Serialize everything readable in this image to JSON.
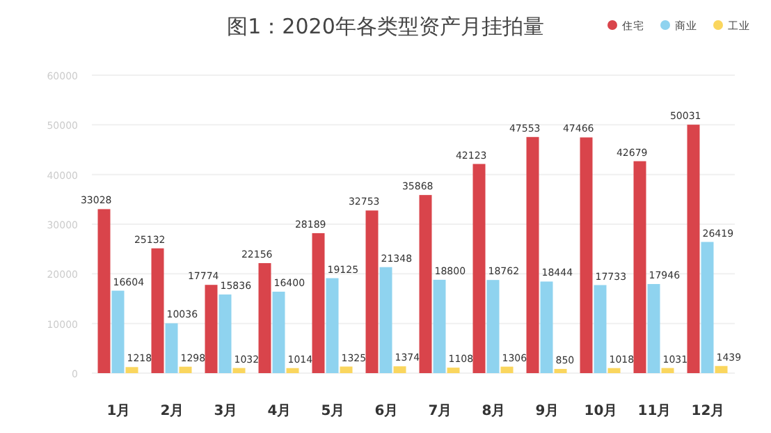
{
  "chart_data": {
    "type": "bar",
    "title": "图1：2020年各类型资产月挂拍量",
    "categories": [
      "1月",
      "2月",
      "3月",
      "4月",
      "5月",
      "6月",
      "7月",
      "8月",
      "9月",
      "10月",
      "11月",
      "12月"
    ],
    "series": [
      {
        "name": "住宅",
        "color": "#d9444b",
        "values": [
          33028,
          25132,
          17774,
          22156,
          28189,
          32753,
          35868,
          42123,
          47553,
          47466,
          42679,
          50031
        ]
      },
      {
        "name": "商业",
        "color": "#8fd3ef",
        "values": [
          16604,
          10036,
          15836,
          16400,
          19125,
          21348,
          18800,
          18762,
          18444,
          17733,
          17946,
          26419
        ]
      },
      {
        "name": "工业",
        "color": "#fad65e",
        "values": [
          1218,
          1298,
          1032,
          1014,
          1325,
          1374,
          1108,
          1306,
          850,
          1018,
          1031,
          1439
        ]
      }
    ],
    "ylim": [
      0,
      60000
    ],
    "yticks": [
      0,
      10000,
      20000,
      30000,
      40000,
      50000,
      60000
    ],
    "grid": "y",
    "legend": "top right",
    "data_labels": true
  }
}
